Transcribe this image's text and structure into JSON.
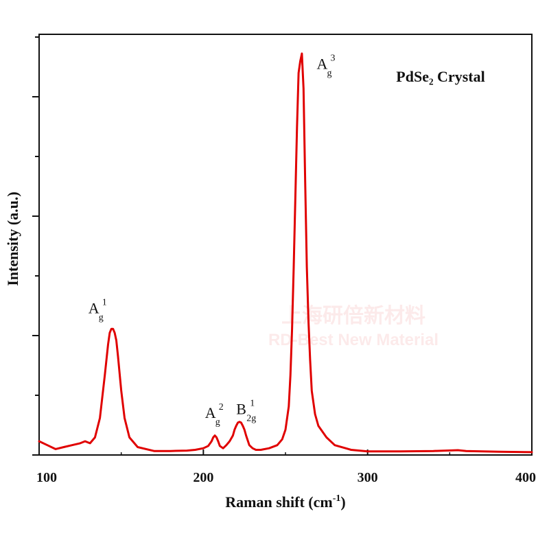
{
  "chart_data": {
    "type": "line",
    "title": "PdSe₂ Crystal",
    "xlabel": "Raman shift (cm",
    "xlabel_sup": "-1",
    "xlabel_close": ")",
    "ylabel": "Intensity (a.u.)",
    "xlim": [
      100,
      400
    ],
    "ylim": [
      0,
      1.06
    ],
    "xticks": [
      100,
      200,
      300,
      400
    ],
    "grid": false,
    "series": [
      {
        "color": "#e00000",
        "x": [
          100,
          105,
          110,
          115,
          120,
          125,
          128,
          131,
          134,
          137,
          140,
          142,
          143,
          144,
          145,
          146,
          147,
          148,
          150,
          152,
          155,
          160,
          170,
          180,
          190,
          195,
          200,
          203,
          205,
          206,
          207,
          208,
          209,
          210,
          212,
          214,
          216,
          218,
          219,
          220,
          221,
          222,
          223,
          224,
          225,
          226,
          228,
          230,
          232,
          235,
          240,
          245,
          248,
          250,
          252,
          253,
          254,
          255,
          256,
          257,
          258,
          259,
          260,
          261,
          262,
          263,
          264,
          265,
          266,
          268,
          270,
          275,
          280,
          290,
          300,
          320,
          340,
          355,
          360,
          380,
          400
        ],
        "y": [
          0.03,
          0.02,
          0.01,
          0.015,
          0.02,
          0.025,
          0.03,
          0.025,
          0.04,
          0.09,
          0.2,
          0.28,
          0.31,
          0.32,
          0.32,
          0.31,
          0.29,
          0.25,
          0.16,
          0.09,
          0.04,
          0.015,
          0.005,
          0.005,
          0.006,
          0.008,
          0.012,
          0.018,
          0.03,
          0.04,
          0.045,
          0.04,
          0.03,
          0.018,
          0.012,
          0.02,
          0.03,
          0.045,
          0.06,
          0.07,
          0.078,
          0.08,
          0.078,
          0.07,
          0.06,
          0.045,
          0.02,
          0.012,
          0.008,
          0.008,
          0.012,
          0.02,
          0.035,
          0.06,
          0.12,
          0.2,
          0.32,
          0.48,
          0.66,
          0.84,
          0.98,
          1.01,
          1.03,
          0.94,
          0.7,
          0.48,
          0.34,
          0.24,
          0.16,
          0.1,
          0.07,
          0.04,
          0.02,
          0.008,
          0.004,
          0.004,
          0.005,
          0.007,
          0.005,
          0.003,
          0.002
        ]
      }
    ],
    "annotations": [
      {
        "main": "A",
        "sub": "g",
        "sup": "1",
        "x": 130,
        "y": 0.36
      },
      {
        "main": "A",
        "sub": "g",
        "sup": "2",
        "x": 201,
        "y": 0.09
      },
      {
        "main": "B",
        "sub": "2g",
        "sup": "1",
        "x": 220,
        "y": 0.1
      },
      {
        "main": "A",
        "sub": "g",
        "sup": "3",
        "x": 269,
        "y": 0.99
      }
    ]
  },
  "watermark": {
    "line1": "上海研倍新材料",
    "line2": "RD-Best New Material"
  }
}
